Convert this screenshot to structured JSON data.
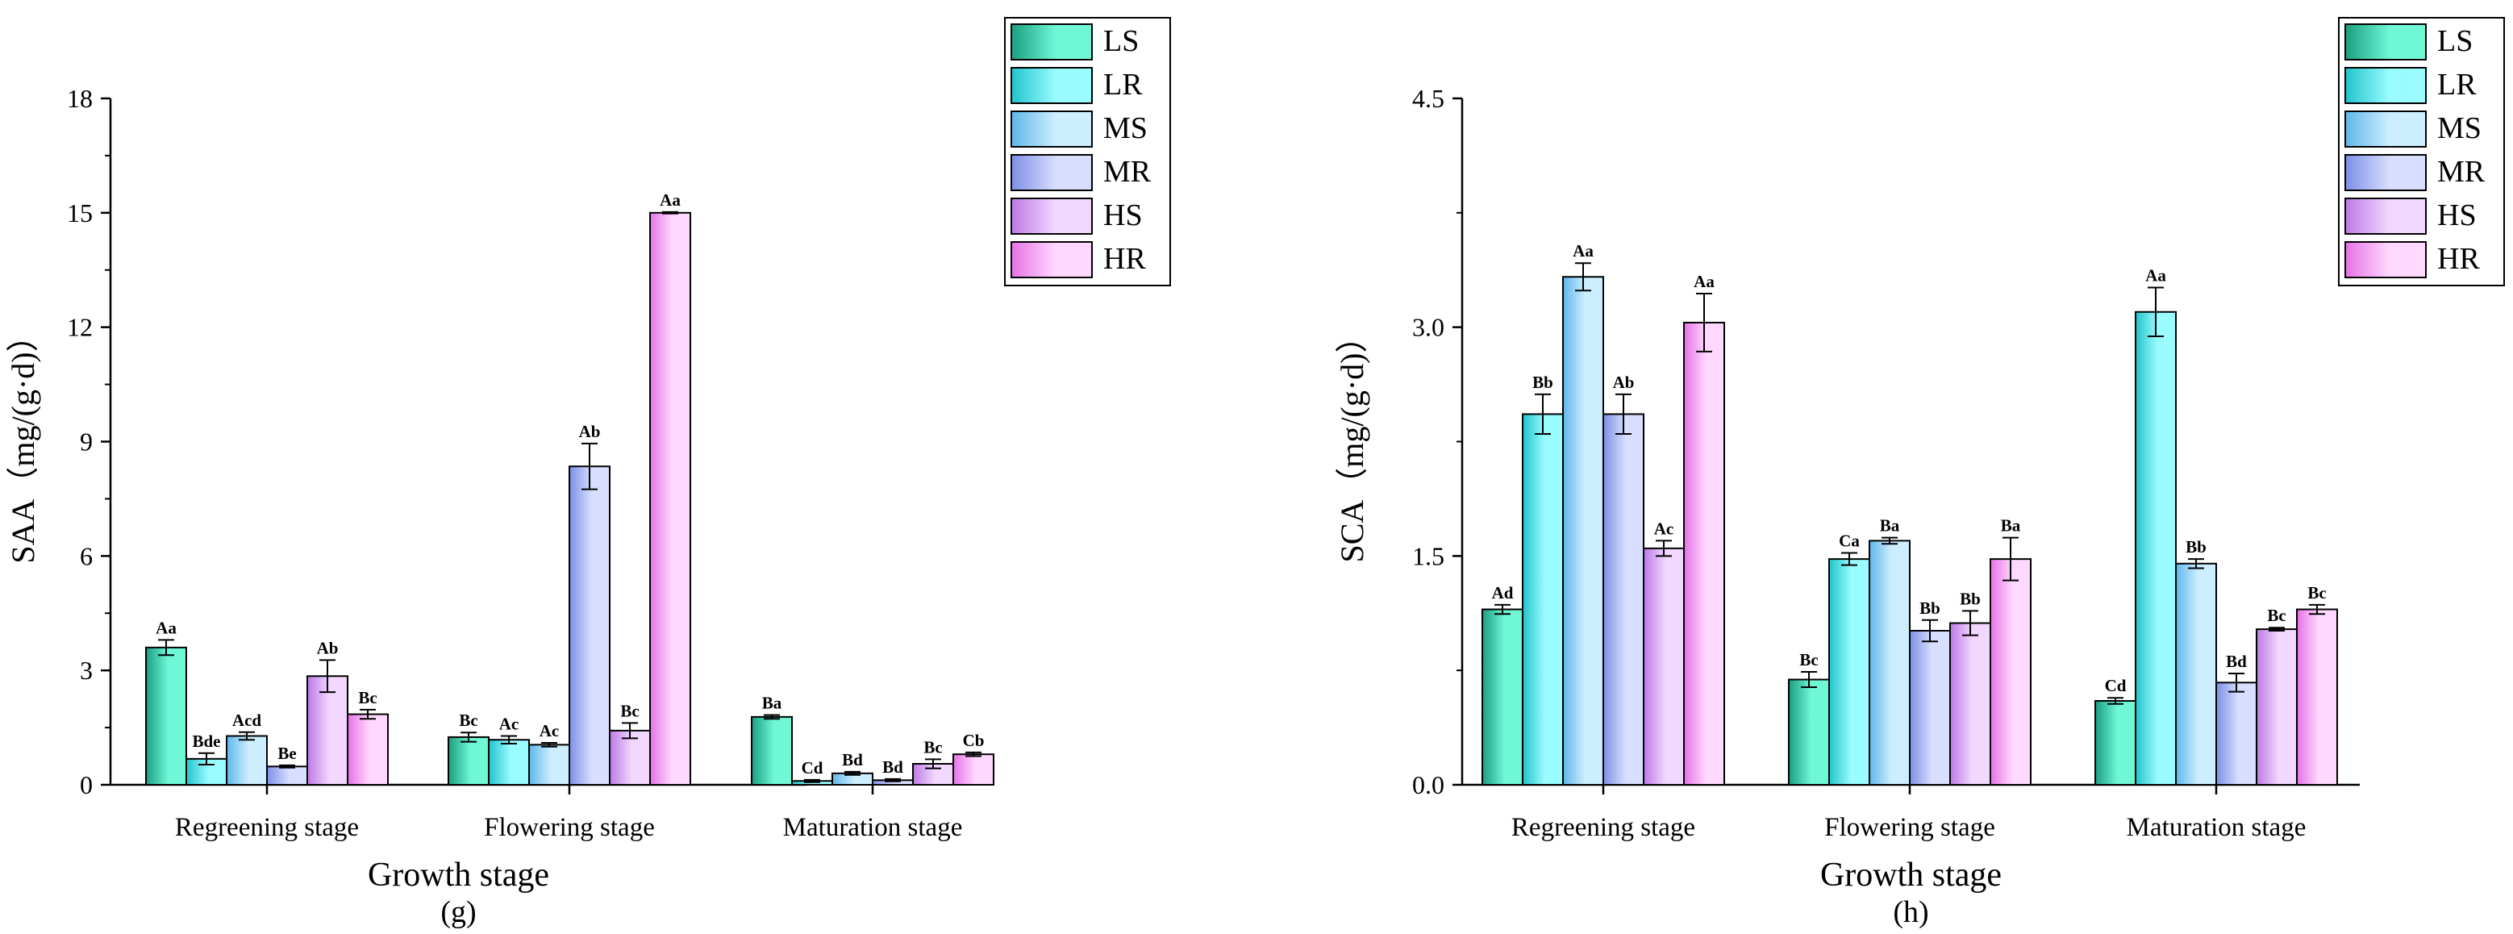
{
  "series_colors": {
    "LS": [
      "#1a9e80",
      "#6ff7d6"
    ],
    "LR": [
      "#20c4cc",
      "#9afcff"
    ],
    "MS": [
      "#5fb7ea",
      "#cdeeff"
    ],
    "MR": [
      "#7c8fe6",
      "#d8defe"
    ],
    "HS": [
      "#bd78e6",
      "#f2d8fe"
    ],
    "HR": [
      "#e672e6",
      "#ffd8ff"
    ]
  },
  "chart_data": [
    {
      "id": "g",
      "type": "bar",
      "panel_label": "(g)",
      "xlabel": "Growth stage",
      "ylabel": "SAA（mg/(g·d)）",
      "ylim": [
        0,
        18
      ],
      "yticks": [
        "0",
        "3",
        "6",
        "9",
        "12",
        "15",
        "18"
      ],
      "categories": [
        "Regreening stage",
        "Flowering stage",
        "Maturation stage"
      ],
      "legend": [
        "LS",
        "LR",
        "MS",
        "MR",
        "HS",
        "HR"
      ],
      "legend_position": "top-right",
      "series": [
        {
          "name": "LS",
          "values": [
            3.6,
            1.25,
            1.78
          ],
          "errors": [
            0.2,
            0.12,
            0.05
          ],
          "labels": [
            "Aa",
            "Bc",
            "Ba"
          ]
        },
        {
          "name": "LR",
          "values": [
            0.68,
            1.18,
            0.1
          ],
          "errors": [
            0.15,
            0.1,
            0.03
          ],
          "labels": [
            "Bde",
            "Ac",
            "Cd"
          ]
        },
        {
          "name": "MS",
          "values": [
            1.28,
            1.05,
            0.3
          ],
          "errors": [
            0.1,
            0.05,
            0.04
          ],
          "labels": [
            "Acd",
            "Ac",
            "Bd"
          ]
        },
        {
          "name": "MR",
          "values": [
            0.48,
            8.35,
            0.12
          ],
          "errors": [
            0.03,
            0.6,
            0.03
          ],
          "labels": [
            "Be",
            "Ab",
            "Bd"
          ]
        },
        {
          "name": "HS",
          "values": [
            2.85,
            1.42,
            0.55
          ],
          "errors": [
            0.42,
            0.2,
            0.12
          ],
          "labels": [
            "Ab",
            "Bc",
            "Bc"
          ]
        },
        {
          "name": "HR",
          "values": [
            1.85,
            15.0,
            0.8
          ],
          "errors": [
            0.12,
            0.02,
            0.05
          ],
          "labels": [
            "Bc",
            "Aa",
            "Cb"
          ]
        }
      ]
    },
    {
      "id": "h",
      "type": "bar",
      "panel_label": "(h)",
      "xlabel": "Growth stage",
      "ylabel": "SCA（mg/(g·d)）",
      "ylim": [
        0,
        4.5
      ],
      "yticks": [
        "0.0",
        "1.5",
        "3.0",
        "4.5"
      ],
      "categories": [
        "Regreening stage",
        "Flowering stage",
        "Maturation stage"
      ],
      "legend": [
        "LS",
        "LR",
        "MS",
        "MR",
        "HS",
        "HR"
      ],
      "legend_position": "top-right",
      "series": [
        {
          "name": "LS",
          "values": [
            1.15,
            0.69,
            0.55
          ],
          "errors": [
            0.03,
            0.05,
            0.02
          ],
          "labels": [
            "Ad",
            "Bc",
            "Cd"
          ]
        },
        {
          "name": "LR",
          "values": [
            2.43,
            1.48,
            3.1
          ],
          "errors": [
            0.13,
            0.04,
            0.16
          ],
          "labels": [
            "Bb",
            "Ca",
            "Aa"
          ]
        },
        {
          "name": "MS",
          "values": [
            3.33,
            1.6,
            1.45
          ],
          "errors": [
            0.09,
            0.02,
            0.03
          ],
          "labels": [
            "Aa",
            "Ba",
            "Bb"
          ]
        },
        {
          "name": "MR",
          "values": [
            2.43,
            1.01,
            0.67
          ],
          "errors": [
            0.13,
            0.07,
            0.06
          ],
          "labels": [
            "Ab",
            "Bb",
            "Bd"
          ]
        },
        {
          "name": "HS",
          "values": [
            1.55,
            1.06,
            1.02
          ],
          "errors": [
            0.05,
            0.08,
            0.01
          ],
          "labels": [
            "Ac",
            "Bb",
            "Bc"
          ]
        },
        {
          "name": "HR",
          "values": [
            3.03,
            1.48,
            1.15
          ],
          "errors": [
            0.19,
            0.14,
            0.03
          ],
          "labels": [
            "Aa",
            "Ba",
            "Bc"
          ]
        }
      ]
    }
  ]
}
